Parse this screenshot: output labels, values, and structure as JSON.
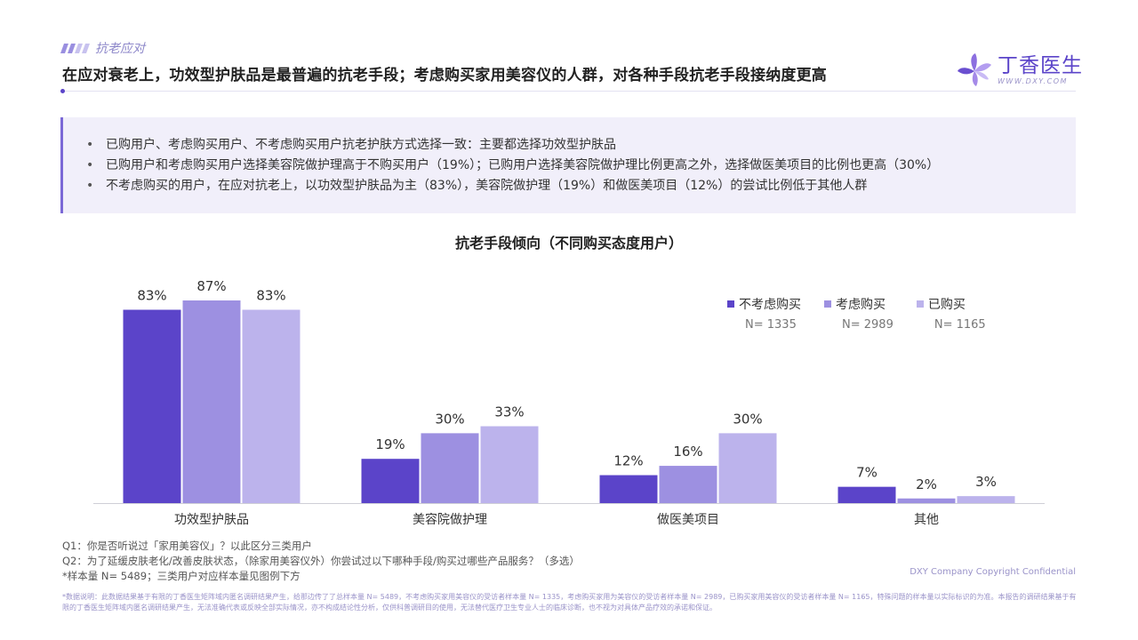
{
  "header": {
    "section_label": "抗老应对",
    "headline": "在应对衰老上，功效型护肤品是最普遍的抗老手段；考虑购买家用美容仪的人群，对各种手段抗老手段接纳度更高",
    "logo_name": "丁香医生",
    "logo_url": "WWW.DXY.COM"
  },
  "summary": [
    "已购用户、考虑购买用户、不考虑购买用户抗老护肤方式选择一致：主要都选择功效型护肤品",
    "已购用户和考虑购买用户选择美容院做护理高于不购买用户（19%）；已购用户选择美容院做护理比例更高之外，选择做医美项目的比例也更高（30%）",
    "不考虑购买的用户，在应对抗老上，以功效型护肤品为主（83%），美容院做护理（19%）和做医美项目（12%）的尝试比例低于其他人群"
  ],
  "chart_data": {
    "type": "bar",
    "title": "抗老手段倾向（不同购买态度用户）",
    "categories": [
      "功效型护肤品",
      "美容院做护理",
      "做医美项目",
      "其他"
    ],
    "series": [
      {
        "name": "不考虑购买",
        "n_label": "N= 1335",
        "color": "#5b44c9",
        "values": [
          83,
          19,
          12,
          7
        ]
      },
      {
        "name": "考虑购买",
        "n_label": "N= 2989",
        "color": "#9d90e1",
        "values": [
          87,
          30,
          16,
          2
        ]
      },
      {
        "name": "已购买",
        "n_label": "N= 1165",
        "color": "#bcb3ec",
        "values": [
          83,
          33,
          30,
          3
        ]
      }
    ],
    "value_suffix": "%",
    "ylim": [
      0,
      100
    ],
    "grid": false,
    "legend_position": "top-right"
  },
  "notes": [
    "Q1：你是否听说过「家用美容仪」？以此区分三类用户",
    "Q2：为了延缓皮肤老化/改善皮肤状态，（除家用美容仪外）你尝试过以下哪种手段/购买过哪些产品服务？（多选）",
    "*样本量 N= 5489；三类用户对应样本量见图例下方"
  ],
  "copyright": "DXY Company Copyright Confidential",
  "fine_print": "*数据说明：此数据结果基于有限的丁香医生矩阵域内匿名调研结果产生，给那边传了了总样本量 N= 5489，不考虑购买家用美容仪的受访者样本量 N= 1335，考虑购买家用为美容仪的受访者样本量 N= 2989，已购买家用美容仪的受访者样本量 N= 1165，特殊问题的样本量以实际标识的为准。本报告的调研结果基于有限的丁香医生矩阵域内匿名调研结果产生，无法准确代表或反映全部实际情况，亦不构成结论性分析，仅供科普调研目的使用，无法替代医疗卫生专业人士的临床诊断，也不视为对具体产品疗效的承诺和保证。"
}
